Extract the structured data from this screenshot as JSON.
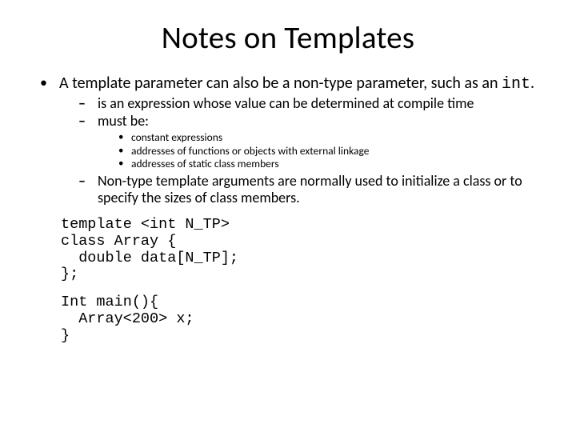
{
  "title": "Notes on Templates",
  "l1": {
    "bullet": "•",
    "text_part1": "A template parameter can also be a non-type parameter, such as an ",
    "text_mono": "int",
    "text_part2": "."
  },
  "l2_items": [
    {
      "bullet": "–",
      "text": "is an expression whose value can be determined at compile time"
    },
    {
      "bullet": "–",
      "text": "must be:"
    }
  ],
  "l3_items": [
    {
      "bullet": "•",
      "text": "constant expressions"
    },
    {
      "bullet": "•",
      "text": "addresses of functions or objects with external linkage"
    },
    {
      "bullet": "•",
      "text": "addresses of static class members"
    }
  ],
  "l2_after": {
    "bullet": "–",
    "text": "Non-type template arguments are normally used to initialize a class or to specify the sizes of class members."
  },
  "code1_line1": "template <int N_TP>",
  "code1_line2": "class Array {",
  "code1_line3": "  double data[N_TP];",
  "code1_line4": "};",
  "code2_line1": "Int main(){",
  "code2_line2": "  Array<200> x;",
  "code2_line3": "}",
  "styling": {
    "background_color": "#ffffff",
    "text_color": "#000000",
    "title_fontsize": 39,
    "l1_fontsize": 20,
    "l2_fontsize": 18,
    "l3_fontsize": 13.5,
    "code_fontsize": 18.5,
    "body_font": "Calibri",
    "code_font": "Courier New",
    "slide_width": 720,
    "slide_height": 540
  }
}
